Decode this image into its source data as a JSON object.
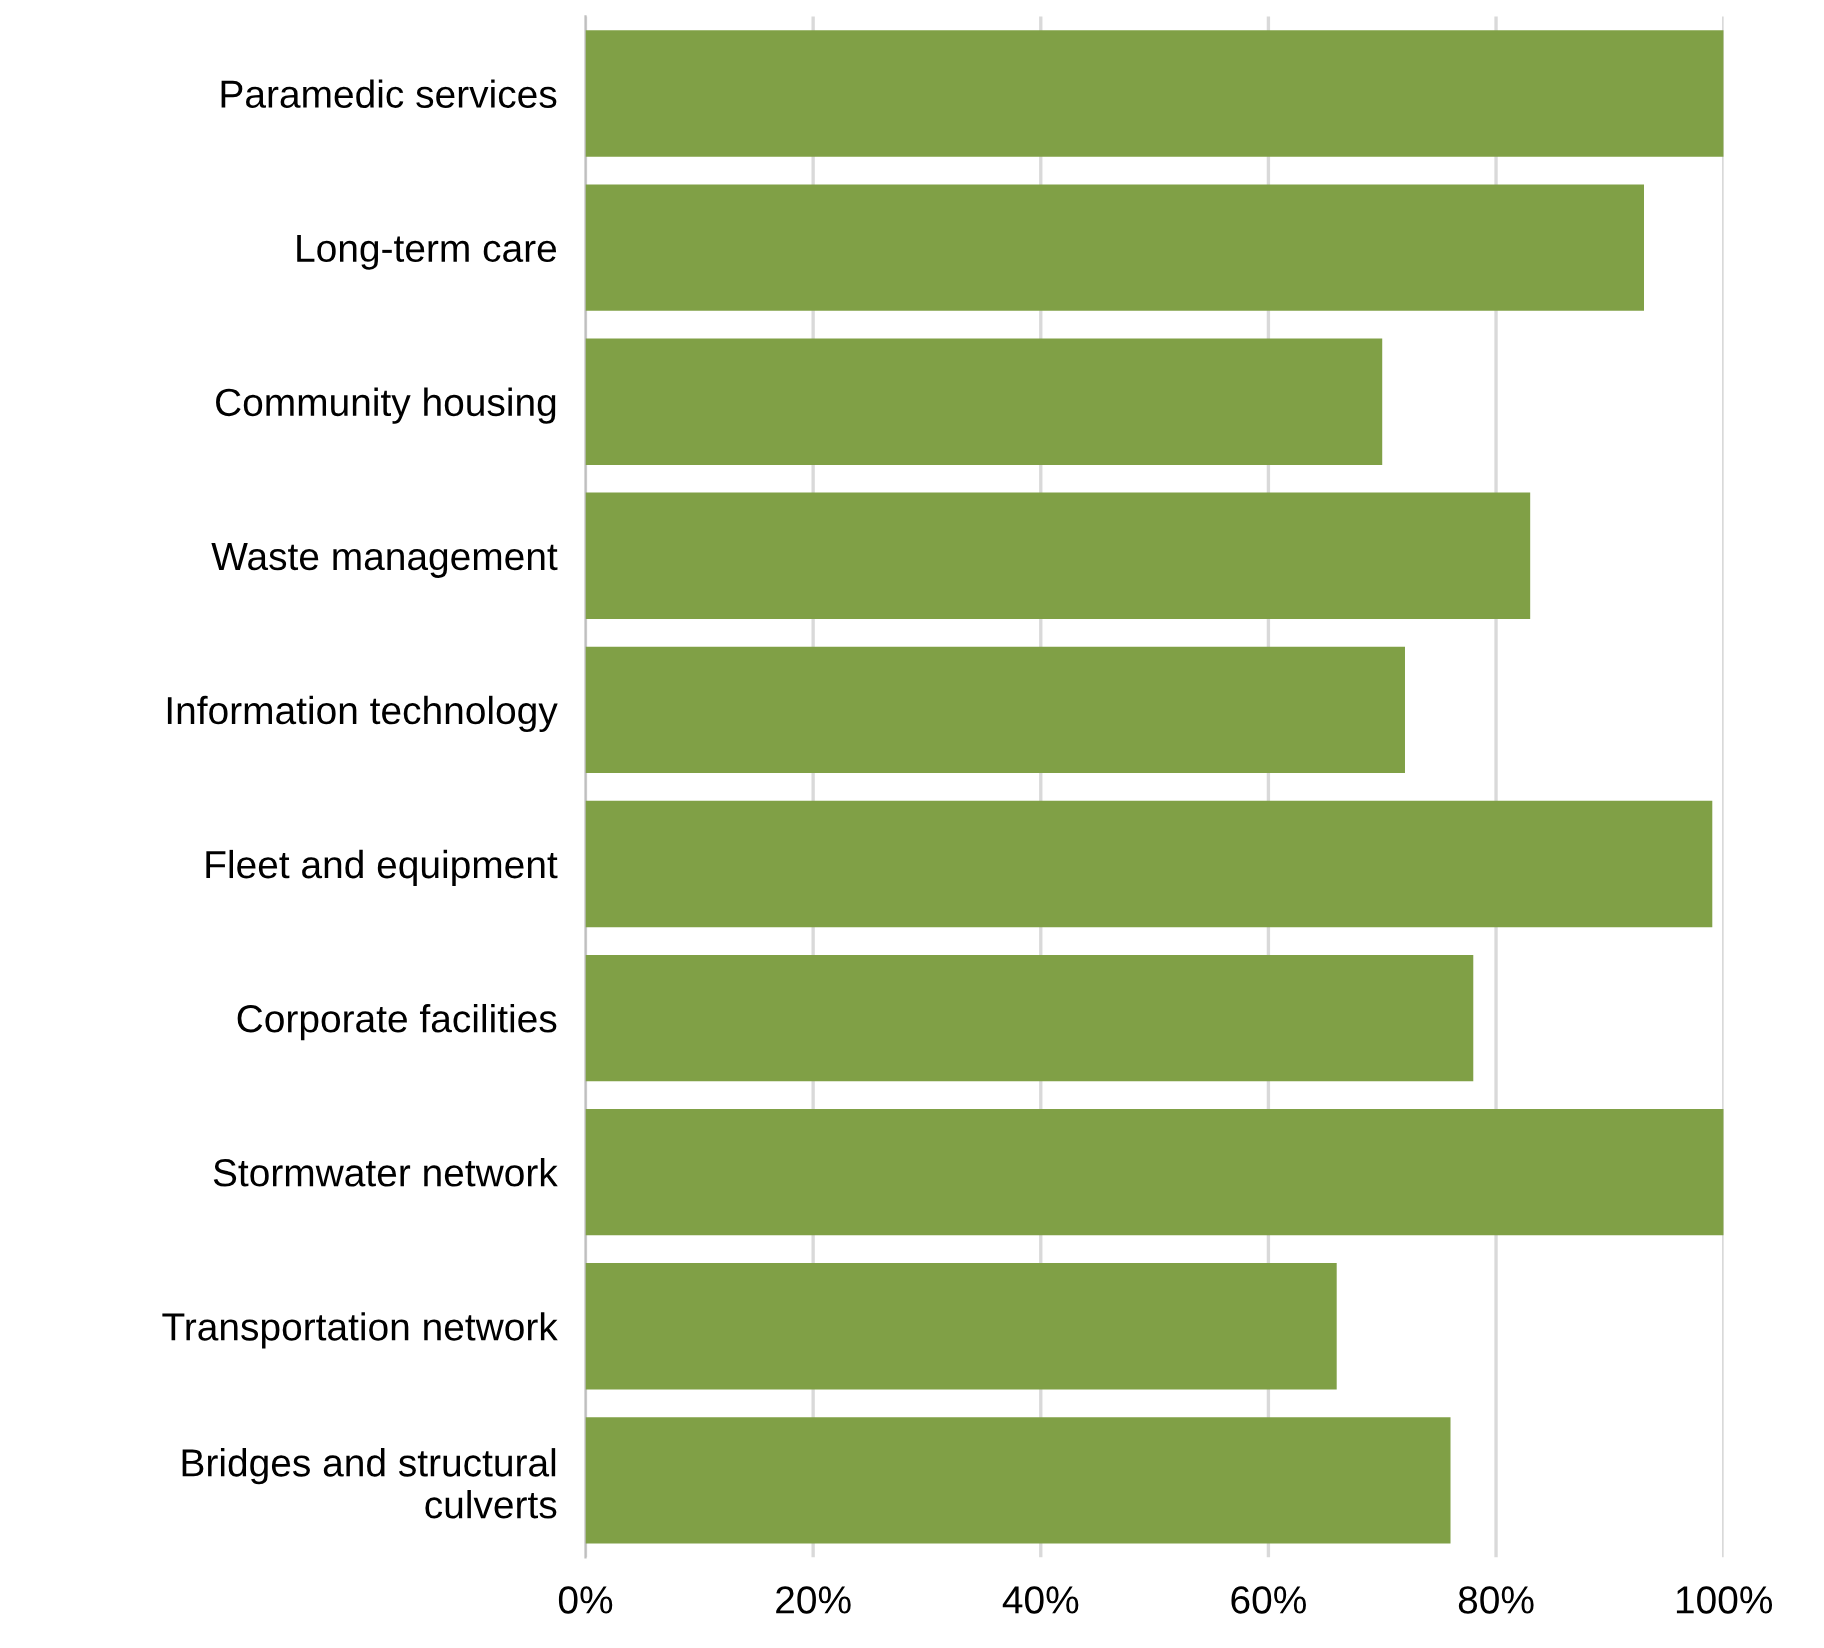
{
  "chart_data": {
    "type": "bar",
    "orientation": "horizontal",
    "categories": [
      "Paramedic services",
      "Long-term care",
      "Community housing",
      "Waste management",
      "Information technology",
      "Fleet and equipment",
      "Corporate facilities",
      "Stormwater network",
      "Transportation network",
      "Bridges and structural\nculverts"
    ],
    "values": [
      100,
      93,
      70,
      83,
      72,
      99,
      78,
      100,
      66,
      76
    ],
    "color": "#80a046",
    "xlim": [
      0,
      100
    ],
    "xticks": [
      {
        "value": 0,
        "label": "0%"
      },
      {
        "value": 20,
        "label": "20%"
      },
      {
        "value": 40,
        "label": "40%"
      },
      {
        "value": 60,
        "label": "60%"
      },
      {
        "value": 80,
        "label": "80%"
      },
      {
        "value": 100,
        "label": "100%"
      }
    ],
    "grid": "x"
  }
}
